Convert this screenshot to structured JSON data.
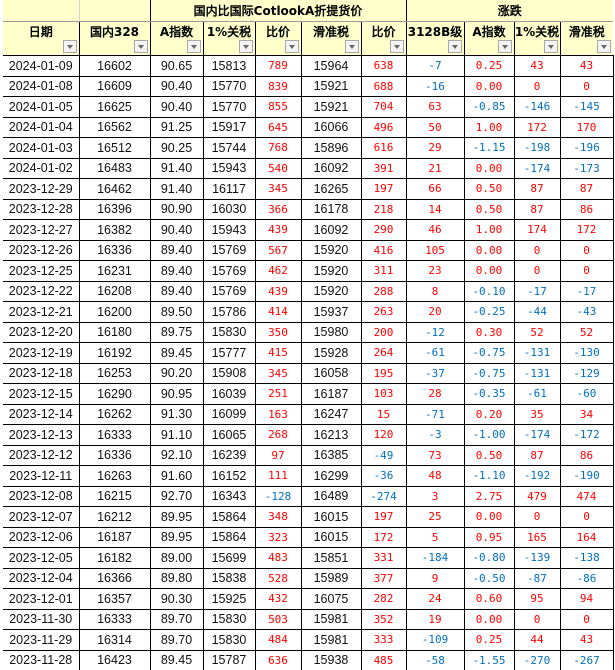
{
  "colors": {
    "positive": "#FF0000",
    "negative": "#0070C0",
    "header_bg": "#FFFFCC"
  },
  "header": {
    "group1": "国内比国际CotlookA折提货价",
    "group2": "涨跌",
    "columns": [
      "日期",
      "国内328",
      "A指数",
      "1%关税",
      "比价",
      "滑准税",
      "比价",
      "3128B级",
      "A指数",
      "1%关税",
      "滑准税"
    ],
    "filter_icon": "dropdown-arrow-icon"
  },
  "rows": [
    [
      "2024-01-09",
      "16602",
      "90.65",
      "15813",
      "789",
      "15964",
      "638",
      "-7",
      "0.25",
      "43",
      "43"
    ],
    [
      "2024-01-08",
      "16609",
      "90.40",
      "15770",
      "839",
      "15921",
      "688",
      "-16",
      "0.00",
      "0",
      "0"
    ],
    [
      "2024-01-05",
      "16625",
      "90.40",
      "15770",
      "855",
      "15921",
      "704",
      "63",
      "-0.85",
      "-146",
      "-145"
    ],
    [
      "2024-01-04",
      "16562",
      "91.25",
      "15917",
      "645",
      "16066",
      "496",
      "50",
      "1.00",
      "172",
      "170"
    ],
    [
      "2024-01-03",
      "16512",
      "90.25",
      "15744",
      "768",
      "15896",
      "616",
      "29",
      "-1.15",
      "-198",
      "-196"
    ],
    [
      "2024-01-02",
      "16483",
      "91.40",
      "15943",
      "540",
      "16092",
      "391",
      "21",
      "0.00",
      "-174",
      "-173"
    ],
    [
      "2023-12-29",
      "16462",
      "91.40",
      "16117",
      "345",
      "16265",
      "197",
      "66",
      "0.50",
      "87",
      "87"
    ],
    [
      "2023-12-28",
      "16396",
      "90.90",
      "16030",
      "366",
      "16178",
      "218",
      "14",
      "0.50",
      "87",
      "86"
    ],
    [
      "2023-12-27",
      "16382",
      "90.40",
      "15943",
      "439",
      "16092",
      "290",
      "46",
      "1.00",
      "174",
      "172"
    ],
    [
      "2023-12-26",
      "16336",
      "89.40",
      "15769",
      "567",
      "15920",
      "416",
      "105",
      "0.00",
      "0",
      "0"
    ],
    [
      "2023-12-25",
      "16231",
      "89.40",
      "15769",
      "462",
      "15920",
      "311",
      "23",
      "0.00",
      "0",
      "0"
    ],
    [
      "2023-12-22",
      "16208",
      "89.40",
      "15769",
      "439",
      "15920",
      "288",
      "8",
      "-0.10",
      "-17",
      "-17"
    ],
    [
      "2023-12-21",
      "16200",
      "89.50",
      "15786",
      "414",
      "15937",
      "263",
      "20",
      "-0.25",
      "-44",
      "-43"
    ],
    [
      "2023-12-20",
      "16180",
      "89.75",
      "15830",
      "350",
      "15980",
      "200",
      "-12",
      "0.30",
      "52",
      "52"
    ],
    [
      "2023-12-19",
      "16192",
      "89.45",
      "15777",
      "415",
      "15928",
      "264",
      "-61",
      "-0.75",
      "-131",
      "-130"
    ],
    [
      "2023-12-18",
      "16253",
      "90.20",
      "15908",
      "345",
      "16058",
      "195",
      "-37",
      "-0.75",
      "-131",
      "-129"
    ],
    [
      "2023-12-15",
      "16290",
      "90.95",
      "16039",
      "251",
      "16187",
      "103",
      "28",
      "-0.35",
      "-61",
      "-60"
    ],
    [
      "2023-12-14",
      "16262",
      "91.30",
      "16099",
      "163",
      "16247",
      "15",
      "-71",
      "0.20",
      "35",
      "34"
    ],
    [
      "2023-12-13",
      "16333",
      "91.10",
      "16065",
      "268",
      "16213",
      "120",
      "-3",
      "-1.00",
      "-174",
      "-172"
    ],
    [
      "2023-12-12",
      "16336",
      "92.10",
      "16239",
      "97",
      "16385",
      "-49",
      "73",
      "0.50",
      "87",
      "86"
    ],
    [
      "2023-12-11",
      "16263",
      "91.60",
      "16152",
      "111",
      "16299",
      "-36",
      "48",
      "-1.10",
      "-192",
      "-190"
    ],
    [
      "2023-12-08",
      "16215",
      "92.70",
      "16343",
      "-128",
      "16489",
      "-274",
      "3",
      "2.75",
      "479",
      "474"
    ],
    [
      "2023-12-07",
      "16212",
      "89.95",
      "15864",
      "348",
      "16015",
      "197",
      "25",
      "0.00",
      "0",
      "0"
    ],
    [
      "2023-12-06",
      "16187",
      "89.95",
      "15864",
      "323",
      "16015",
      "172",
      "5",
      "0.95",
      "165",
      "164"
    ],
    [
      "2023-12-05",
      "16182",
      "89.00",
      "15699",
      "483",
      "15851",
      "331",
      "-184",
      "-0.80",
      "-139",
      "-138"
    ],
    [
      "2023-12-04",
      "16366",
      "89.80",
      "15838",
      "528",
      "15989",
      "377",
      "9",
      "-0.50",
      "-87",
      "-86"
    ],
    [
      "2023-12-01",
      "16357",
      "90.30",
      "15925",
      "432",
      "16075",
      "282",
      "24",
      "0.60",
      "95",
      "94"
    ],
    [
      "2023-11-30",
      "16333",
      "89.70",
      "15830",
      "503",
      "15981",
      "352",
      "19",
      "0.00",
      "0",
      "0"
    ],
    [
      "2023-11-29",
      "16314",
      "89.70",
      "15830",
      "484",
      "15981",
      "333",
      "-109",
      "0.25",
      "44",
      "43"
    ],
    [
      "2023-11-28",
      "16423",
      "89.45",
      "15787",
      "636",
      "15938",
      "485",
      "-58",
      "-1.55",
      "-270",
      "-267"
    ]
  ]
}
